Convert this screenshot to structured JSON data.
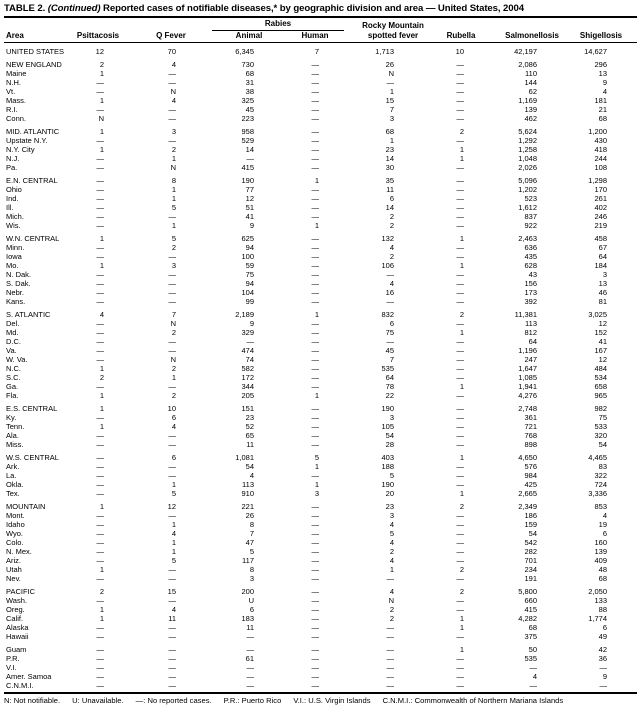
{
  "style": {
    "text_color": "#000000",
    "background": "#ffffff",
    "rule_color": "#000000"
  },
  "title": {
    "label": "TABLE 2.",
    "continued": "(Continued)",
    "rest": "Reported cases of notifiable diseases,* by geographic division and area — United States, 2004"
  },
  "header": {
    "area": "Area",
    "psittacosis": "Psittacosis",
    "q_fever": "Q Fever",
    "rabies": "Rabies",
    "animal": "Animal",
    "human": "Human",
    "rmsf_line1": "Rocky Mountain",
    "rmsf_line2": "spotted fever",
    "rubella": "Rubella",
    "salmonellosis": "Salmonellosis",
    "shigellosis": "Shigellosis"
  },
  "table": {
    "groups": [
      {
        "rows": [
          {
            "area": "UNITED STATES",
            "values": [
              "12",
              "70",
              "6,345",
              "7",
              "1,713",
              "10",
              "42,197",
              "14,627"
            ]
          }
        ]
      },
      {
        "rows": [
          {
            "area": "NEW ENGLAND",
            "values": [
              "2",
              "4",
              "730",
              "—",
              "26",
              "—",
              "2,086",
              "296"
            ]
          },
          {
            "area": "Maine",
            "values": [
              "1",
              "—",
              "68",
              "—",
              "N",
              "—",
              "110",
              "13"
            ]
          },
          {
            "area": "N.H.",
            "values": [
              "—",
              "—",
              "31",
              "—",
              "—",
              "—",
              "144",
              "9"
            ]
          },
          {
            "area": "Vt.",
            "values": [
              "—",
              "N",
              "38",
              "—",
              "1",
              "—",
              "62",
              "4"
            ]
          },
          {
            "area": "Mass.",
            "values": [
              "1",
              "4",
              "325",
              "—",
              "15",
              "—",
              "1,169",
              "181"
            ]
          },
          {
            "area": "R.I.",
            "values": [
              "—",
              "—",
              "45",
              "—",
              "7",
              "—",
              "139",
              "21"
            ]
          },
          {
            "area": "Conn.",
            "values": [
              "N",
              "—",
              "223",
              "—",
              "3",
              "—",
              "462",
              "68"
            ]
          }
        ]
      },
      {
        "rows": [
          {
            "area": "MID. ATLANTIC",
            "values": [
              "1",
              "3",
              "958",
              "—",
              "68",
              "2",
              "5,624",
              "1,200"
            ]
          },
          {
            "area": "Upstate N.Y.",
            "values": [
              "—",
              "—",
              "529",
              "—",
              "1",
              "—",
              "1,292",
              "430"
            ]
          },
          {
            "area": "N.Y. City",
            "values": [
              "1",
              "2",
              "14",
              "—",
              "23",
              "1",
              "1,258",
              "418"
            ]
          },
          {
            "area": "N.J.",
            "values": [
              "—",
              "1",
              "—",
              "—",
              "14",
              "1",
              "1,048",
              "244"
            ]
          },
          {
            "area": "Pa.",
            "values": [
              "—",
              "N",
              "415",
              "—",
              "30",
              "—",
              "2,026",
              "108"
            ]
          }
        ]
      },
      {
        "rows": [
          {
            "area": "E.N. CENTRAL",
            "values": [
              "—",
              "8",
              "190",
              "1",
              "35",
              "—",
              "5,096",
              "1,298"
            ]
          },
          {
            "area": "Ohio",
            "values": [
              "—",
              "1",
              "77",
              "—",
              "11",
              "—",
              "1,202",
              "170"
            ]
          },
          {
            "area": "Ind.",
            "values": [
              "—",
              "1",
              "12",
              "—",
              "6",
              "—",
              "523",
              "261"
            ]
          },
          {
            "area": "Ill.",
            "values": [
              "—",
              "5",
              "51",
              "—",
              "14",
              "—",
              "1,612",
              "402"
            ]
          },
          {
            "area": "Mich.",
            "values": [
              "—",
              "—",
              "41",
              "—",
              "2",
              "—",
              "837",
              "246"
            ]
          },
          {
            "area": "Wis.",
            "values": [
              "—",
              "1",
              "9",
              "1",
              "2",
              "—",
              "922",
              "219"
            ]
          }
        ]
      },
      {
        "rows": [
          {
            "area": "W.N. CENTRAL",
            "values": [
              "1",
              "5",
              "625",
              "—",
              "132",
              "1",
              "2,463",
              "458"
            ]
          },
          {
            "area": "Minn.",
            "values": [
              "—",
              "2",
              "94",
              "—",
              "4",
              "—",
              "636",
              "67"
            ]
          },
          {
            "area": "Iowa",
            "values": [
              "—",
              "—",
              "100",
              "—",
              "2",
              "—",
              "435",
              "64"
            ]
          },
          {
            "area": "Mo.",
            "values": [
              "1",
              "3",
              "59",
              "—",
              "106",
              "1",
              "628",
              "184"
            ]
          },
          {
            "area": "N. Dak.",
            "values": [
              "—",
              "—",
              "75",
              "—",
              "—",
              "—",
              "43",
              "3"
            ]
          },
          {
            "area": "S. Dak.",
            "values": [
              "—",
              "—",
              "94",
              "—",
              "4",
              "—",
              "156",
              "13"
            ]
          },
          {
            "area": "Nebr.",
            "values": [
              "—",
              "—",
              "104",
              "—",
              "16",
              "—",
              "173",
              "46"
            ]
          },
          {
            "area": "Kans.",
            "values": [
              "—",
              "—",
              "99",
              "—",
              "—",
              "—",
              "392",
              "81"
            ]
          }
        ]
      },
      {
        "rows": [
          {
            "area": "S. ATLANTIC",
            "values": [
              "4",
              "7",
              "2,189",
              "1",
              "832",
              "2",
              "11,381",
              "3,025"
            ]
          },
          {
            "area": "Del.",
            "values": [
              "—",
              "N",
              "9",
              "—",
              "6",
              "—",
              "113",
              "12"
            ]
          },
          {
            "area": "Md.",
            "values": [
              "—",
              "2",
              "329",
              "—",
              "75",
              "1",
              "812",
              "152"
            ]
          },
          {
            "area": "D.C.",
            "values": [
              "—",
              "—",
              "—",
              "—",
              "—",
              "—",
              "64",
              "41"
            ]
          },
          {
            "area": "Va.",
            "values": [
              "—",
              "—",
              "474",
              "—",
              "45",
              "—",
              "1,196",
              "167"
            ]
          },
          {
            "area": "W. Va.",
            "values": [
              "—",
              "N",
              "74",
              "—",
              "7",
              "—",
              "247",
              "12"
            ]
          },
          {
            "area": "N.C.",
            "values": [
              "1",
              "2",
              "582",
              "—",
              "535",
              "—",
              "1,647",
              "484"
            ]
          },
          {
            "area": "S.C.",
            "values": [
              "2",
              "1",
              "172",
              "—",
              "64",
              "—",
              "1,085",
              "534"
            ]
          },
          {
            "area": "Ga.",
            "values": [
              "—",
              "—",
              "344",
              "—",
              "78",
              "1",
              "1,941",
              "658"
            ]
          },
          {
            "area": "Fla.",
            "values": [
              "1",
              "2",
              "205",
              "1",
              "22",
              "—",
              "4,276",
              "965"
            ]
          }
        ]
      },
      {
        "rows": [
          {
            "area": "E.S. CENTRAL",
            "values": [
              "1",
              "10",
              "151",
              "—",
              "190",
              "—",
              "2,748",
              "982"
            ]
          },
          {
            "area": "Ky.",
            "values": [
              "—",
              "6",
              "23",
              "—",
              "3",
              "—",
              "361",
              "75"
            ]
          },
          {
            "area": "Tenn.",
            "values": [
              "1",
              "4",
              "52",
              "—",
              "105",
              "—",
              "721",
              "533"
            ]
          },
          {
            "area": "Ala.",
            "values": [
              "—",
              "—",
              "65",
              "—",
              "54",
              "—",
              "768",
              "320"
            ]
          },
          {
            "area": "Miss.",
            "values": [
              "—",
              "—",
              "11",
              "—",
              "28",
              "—",
              "898",
              "54"
            ]
          }
        ]
      },
      {
        "rows": [
          {
            "area": "W.S. CENTRAL",
            "values": [
              "—",
              "6",
              "1,081",
              "5",
              "403",
              "1",
              "4,650",
              "4,465"
            ]
          },
          {
            "area": "Ark.",
            "values": [
              "—",
              "—",
              "54",
              "1",
              "188",
              "—",
              "576",
              "83"
            ]
          },
          {
            "area": "La.",
            "values": [
              "—",
              "—",
              "4",
              "—",
              "5",
              "—",
              "984",
              "322"
            ]
          },
          {
            "area": "Okla.",
            "values": [
              "—",
              "1",
              "113",
              "1",
              "190",
              "—",
              "425",
              "724"
            ]
          },
          {
            "area": "Tex.",
            "values": [
              "—",
              "5",
              "910",
              "3",
              "20",
              "1",
              "2,665",
              "3,336"
            ]
          }
        ]
      },
      {
        "rows": [
          {
            "area": "MOUNTAIN",
            "values": [
              "1",
              "12",
              "221",
              "—",
              "23",
              "2",
              "2,349",
              "853"
            ]
          },
          {
            "area": "Mont.",
            "values": [
              "—",
              "—",
              "26",
              "—",
              "3",
              "—",
              "186",
              "4"
            ]
          },
          {
            "area": "Idaho",
            "values": [
              "—",
              "1",
              "8",
              "—",
              "4",
              "—",
              "159",
              "19"
            ]
          },
          {
            "area": "Wyo.",
            "values": [
              "—",
              "4",
              "7",
              "—",
              "5",
              "—",
              "54",
              "6"
            ]
          },
          {
            "area": "Colo.",
            "values": [
              "—",
              "1",
              "47",
              "—",
              "4",
              "—",
              "542",
              "160"
            ]
          },
          {
            "area": "N. Mex.",
            "values": [
              "—",
              "1",
              "5",
              "—",
              "2",
              "—",
              "282",
              "139"
            ]
          },
          {
            "area": "Ariz.",
            "values": [
              "—",
              "5",
              "117",
              "—",
              "4",
              "—",
              "701",
              "409"
            ]
          },
          {
            "area": "Utah",
            "values": [
              "1",
              "—",
              "8",
              "—",
              "1",
              "2",
              "234",
              "48"
            ]
          },
          {
            "area": "Nev.",
            "values": [
              "—",
              "—",
              "3",
              "—",
              "—",
              "—",
              "191",
              "68"
            ]
          }
        ]
      },
      {
        "rows": [
          {
            "area": "PACIFIC",
            "values": [
              "2",
              "15",
              "200",
              "—",
              "4",
              "2",
              "5,800",
              "2,050"
            ]
          },
          {
            "area": "Wash.",
            "values": [
              "—",
              "—",
              "U",
              "—",
              "N",
              "—",
              "660",
              "133"
            ]
          },
          {
            "area": "Oreg.",
            "values": [
              "1",
              "4",
              "6",
              "—",
              "2",
              "—",
              "415",
              "88"
            ]
          },
          {
            "area": "Calif.",
            "values": [
              "1",
              "11",
              "183",
              "—",
              "2",
              "1",
              "4,282",
              "1,774"
            ]
          },
          {
            "area": "Alaska",
            "values": [
              "—",
              "—",
              "11",
              "—",
              "—",
              "1",
              "68",
              "6"
            ]
          },
          {
            "area": "Hawaii",
            "values": [
              "—",
              "—",
              "—",
              "—",
              "—",
              "—",
              "375",
              "49"
            ]
          }
        ]
      },
      {
        "rows": [
          {
            "area": "Guam",
            "values": [
              "—",
              "—",
              "—",
              "—",
              "—",
              "1",
              "50",
              "42"
            ]
          },
          {
            "area": "P.R.",
            "values": [
              "—",
              "—",
              "61",
              "—",
              "—",
              "—",
              "535",
              "36"
            ]
          },
          {
            "area": "V.I.",
            "values": [
              "—",
              "—",
              "—",
              "—",
              "—",
              "—",
              "—",
              "—"
            ]
          },
          {
            "area": "Amer. Samoa",
            "values": [
              "—",
              "—",
              "—",
              "—",
              "—",
              "—",
              "4",
              "9"
            ]
          },
          {
            "area": "C.N.M.I.",
            "values": [
              "—",
              "—",
              "—",
              "—",
              "—",
              "—",
              "—",
              "—"
            ]
          }
        ]
      }
    ]
  },
  "footnote": {
    "items": [
      "N: Not notifiable.",
      "U: Unavailable.",
      "—: No reported cases.",
      "P.R.: Puerto Rico",
      "V.I.: U.S. Virgin Islands",
      "C.N.M.I.: Commonwealth of Northern Mariana Islands"
    ]
  }
}
